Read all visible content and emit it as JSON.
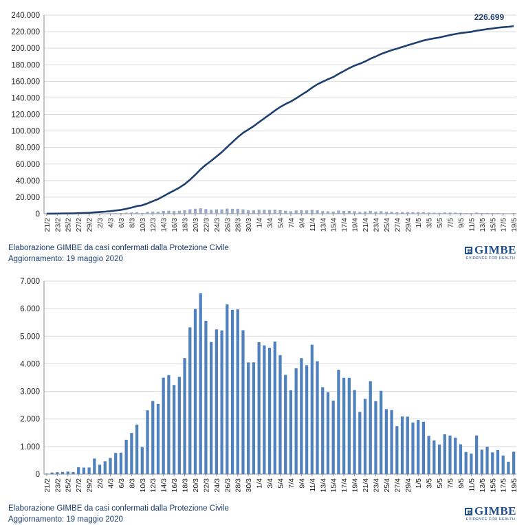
{
  "chart_data": [
    {
      "type": "line",
      "title": "",
      "xlabel": "",
      "ylabel": "",
      "ylim": [
        0,
        240000
      ],
      "yticks": [
        "0",
        "20.000",
        "40.000",
        "60.000",
        "80.000",
        "100.000",
        "120.000",
        "140.000",
        "160.000",
        "180.000",
        "200.000",
        "220.000",
        "240.000"
      ],
      "x": [
        "21/2",
        "22/2",
        "23/2",
        "24/2",
        "25/2",
        "26/2",
        "27/2",
        "28/2",
        "29/2",
        "1/3",
        "2/3",
        "3/3",
        "4/3",
        "5/3",
        "6/3",
        "7/3",
        "8/3",
        "9/3",
        "10/3",
        "11/3",
        "12/3",
        "13/3",
        "14/3",
        "15/3",
        "16/3",
        "17/3",
        "18/3",
        "19/3",
        "20/3",
        "21/3",
        "22/3",
        "23/3",
        "24/3",
        "25/3",
        "26/3",
        "27/3",
        "28/3",
        "29/3",
        "30/3",
        "31/3",
        "1/4",
        "2/4",
        "3/4",
        "4/4",
        "5/4",
        "6/4",
        "7/4",
        "8/4",
        "9/4",
        "10/4",
        "11/4",
        "12/4",
        "13/4",
        "14/4",
        "15/4",
        "16/4",
        "17/4",
        "18/4",
        "19/4",
        "20/4",
        "21/4",
        "22/4",
        "23/4",
        "24/4",
        "25/4",
        "26/4",
        "27/4",
        "28/4",
        "29/4",
        "30/4",
        "1/5",
        "2/5",
        "3/5",
        "4/5",
        "5/5",
        "6/5",
        "7/5",
        "8/5",
        "9/5",
        "10/5",
        "11/5",
        "12/5",
        "13/5",
        "14/5",
        "15/5",
        "16/5",
        "17/5",
        "18/5",
        "19/5"
      ],
      "xtick_labels": [
        "21/2",
        "23/2",
        "25/2",
        "27/2",
        "29/2",
        "2/3",
        "4/3",
        "6/3",
        "8/3",
        "10/3",
        "12/3",
        "14/3",
        "16/3",
        "18/3",
        "20/3",
        "22/3",
        "24/3",
        "26/3",
        "28/3",
        "30/3",
        "1/4",
        "3/4",
        "5/4",
        "7/4",
        "9/4",
        "11/4",
        "13/4",
        "15/4",
        "17/4",
        "19/4",
        "21/4",
        "23/4",
        "25/4",
        "27/4",
        "29/4",
        "1/5",
        "3/5",
        "5/5",
        "7/5",
        "9/5",
        "11/5",
        "13/5",
        "15/5",
        "17/5",
        "19/5"
      ],
      "series": [
        {
          "values": [
            20,
            79,
            150,
            229,
            322,
            400,
            650,
            888,
            1128,
            1694,
            2036,
            2502,
            3089,
            3858,
            4636,
            5883,
            7375,
            9172,
            10149,
            12462,
            15113,
            17660,
            21157,
            24747,
            27980,
            31506,
            35713,
            41035,
            47021,
            53578,
            59138,
            63927,
            69176,
            74386,
            80539,
            86498,
            92472,
            97689,
            101739,
            105792,
            110574,
            115242,
            119827,
            124632,
            128948,
            132547,
            135586,
            139422,
            143626,
            147577,
            152271,
            156363,
            159516,
            162488,
            165155,
            168941,
            172434,
            175925,
            178972,
            181228,
            183957,
            187327,
            189973,
            192994,
            195351,
            197675,
            199414,
            201505,
            203591,
            205463,
            207428,
            209328,
            210717,
            211938,
            213013,
            214457,
            215858,
            217185,
            218268,
            219070,
            219814,
            221216,
            222104,
            223096,
            223885,
            224760,
            225435,
            225886,
            226699
          ]
        }
      ],
      "bars": [
        20,
        59,
        71,
        79,
        93,
        78,
        250,
        238,
        240,
        566,
        342,
        466,
        587,
        769,
        778,
        1247,
        1492,
        1797,
        977,
        2313,
        2651,
        2547,
        3497,
        3590,
        3233,
        3526,
        4207,
        5322,
        5986,
        6557,
        5560,
        4789,
        5249,
        5210,
        6153,
        5959,
        5974,
        5217,
        4050,
        4053,
        4782,
        4668,
        4585,
        4805,
        4316,
        3599,
        3039,
        3836,
        4204,
        3951,
        4694,
        4092,
        3153,
        2972,
        2667,
        3786,
        3493,
        3491,
        3047,
        2256,
        2729,
        3370,
        2646,
        3021,
        2357,
        2324,
        1739,
        2091,
        2086,
        1872,
        1965,
        1900,
        1389,
        1221,
        1075,
        1444,
        1401,
        1327,
        1083,
        802,
        744,
        1402,
        888,
        992,
        789,
        875,
        675,
        451,
        813
      ],
      "annotations": [
        "226.699"
      ]
    },
    {
      "type": "bar",
      "title": "",
      "xlabel": "",
      "ylabel": "",
      "ylim": [
        0,
        7000
      ],
      "yticks": [
        "0",
        "1.000",
        "2.000",
        "3.000",
        "4.000",
        "5.000",
        "6.000",
        "7.000"
      ],
      "xtick_labels": [
        "21/2",
        "23/2",
        "25/2",
        "27/2",
        "29/2",
        "2/3",
        "4/3",
        "6/3",
        "8/3",
        "10/3",
        "12/3",
        "14/3",
        "16/3",
        "18/3",
        "20/3",
        "22/3",
        "24/3",
        "26/3",
        "28/3",
        "30/3",
        "1/4",
        "3/4",
        "5/4",
        "7/4",
        "9/4",
        "11/4",
        "13/4",
        "15/4",
        "17/4",
        "19/4",
        "21/4",
        "23/4",
        "25/4",
        "27/4",
        "29/4",
        "1/5",
        "3/5",
        "5/5",
        "7/5",
        "9/5",
        "11/5",
        "13/5",
        "15/5",
        "17/5",
        "19/5"
      ],
      "values": [
        20,
        59,
        71,
        79,
        93,
        78,
        250,
        238,
        240,
        566,
        342,
        466,
        587,
        769,
        778,
        1247,
        1492,
        1797,
        977,
        2313,
        2651,
        2547,
        3497,
        3590,
        3233,
        3526,
        4207,
        5322,
        5986,
        6557,
        5560,
        4789,
        5249,
        5210,
        6153,
        5959,
        5974,
        5217,
        4050,
        4053,
        4782,
        4668,
        4585,
        4805,
        4316,
        3599,
        3039,
        3836,
        4204,
        3951,
        4694,
        4092,
        3153,
        2972,
        2667,
        3786,
        3493,
        3491,
        3047,
        2256,
        2729,
        3370,
        2646,
        3021,
        2357,
        2324,
        1739,
        2091,
        2086,
        1872,
        1965,
        1900,
        1389,
        1221,
        1075,
        1444,
        1401,
        1327,
        1083,
        802,
        744,
        1402,
        888,
        992,
        789,
        875,
        675,
        451,
        813
      ]
    }
  ],
  "captions": {
    "top": {
      "line1": "Elaborazione GIMBE da casi confermati dalla Protezione Civile",
      "line2": "Aggiornamento: 19 maggio 2020"
    },
    "bottom": {
      "line1": "Elaborazione GIMBE da casi confermati dalla Protezione Civile",
      "line2": "Aggiornamento: 19 maggio 2020"
    }
  },
  "logo": {
    "name": "GIMBE",
    "tagline": "EVIDENCE FOR HEALTH"
  },
  "colors": {
    "line": "#1f3f6e",
    "bar": "#4f81bd",
    "bar_faint": "#9aaac4",
    "grid": "#d9d9d9"
  }
}
